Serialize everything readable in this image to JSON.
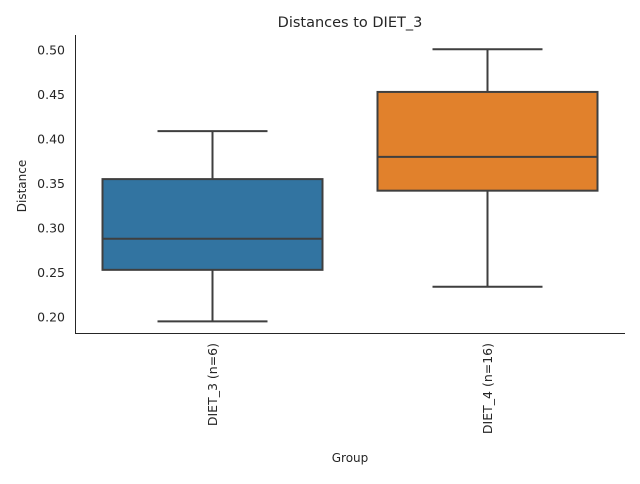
{
  "chart_data": {
    "type": "box",
    "title": "Distances to DIET_3",
    "xlabel": "Group",
    "ylabel": "Distance",
    "ylim": [
      0.182,
      0.517
    ],
    "yticks": [
      "0.20",
      "0.25",
      "0.30",
      "0.35",
      "0.40",
      "0.45",
      "0.50"
    ],
    "ytick_values": [
      0.2,
      0.25,
      0.3,
      0.35,
      0.4,
      0.45,
      0.5
    ],
    "categories": [
      "DIET_3 (n=6)",
      "DIET_4 (n=16)"
    ],
    "boxes": [
      {
        "name": "DIET_3 (n=6)",
        "whisker_low": 0.195,
        "q1": 0.253,
        "median": 0.288,
        "q3": 0.355,
        "whisker_high": 0.409,
        "color": "#3274a1"
      },
      {
        "name": "DIET_4 (n=16)",
        "whisker_low": 0.234,
        "q1": 0.342,
        "median": 0.38,
        "q3": 0.453,
        "whisker_high": 0.501,
        "color": "#e1812c"
      }
    ],
    "grid": false
  }
}
